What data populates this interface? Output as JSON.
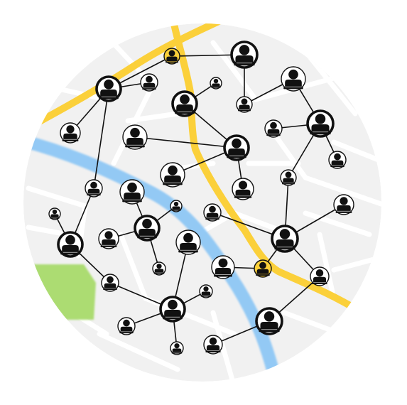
{
  "title": "",
  "colors": {
    "background": "#ffffff",
    "map_base": "#f1f1f1",
    "street": "#ffffff",
    "park": "#acdc72",
    "river": "#8ec7f5",
    "road": "#fbd03a",
    "node_fill": "#ffffff",
    "node_stroke": "#111111",
    "edge": "#111111",
    "person": "#111111"
  },
  "icons": {
    "person": "person-icon"
  }
}
